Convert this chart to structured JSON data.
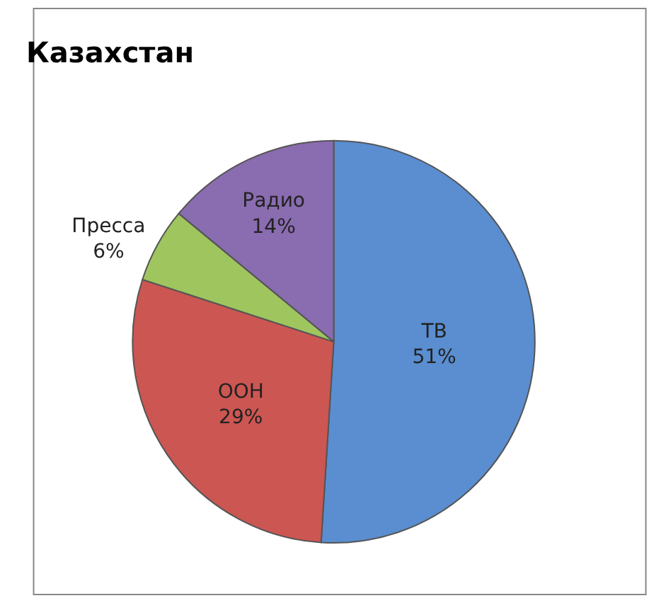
{
  "chart_data": {
    "type": "pie",
    "title": "Казахстан",
    "categories": [
      "ТВ",
      "ООН",
      "Пресса",
      "Радио"
    ],
    "values": [
      51,
      29,
      6,
      14
    ],
    "value_labels": [
      "51%",
      "29%",
      "6%",
      "14%"
    ],
    "colors": [
      "#5a8ed0",
      "#cc5652",
      "#9fc55f",
      "#8a6cb0"
    ],
    "legend": false
  }
}
